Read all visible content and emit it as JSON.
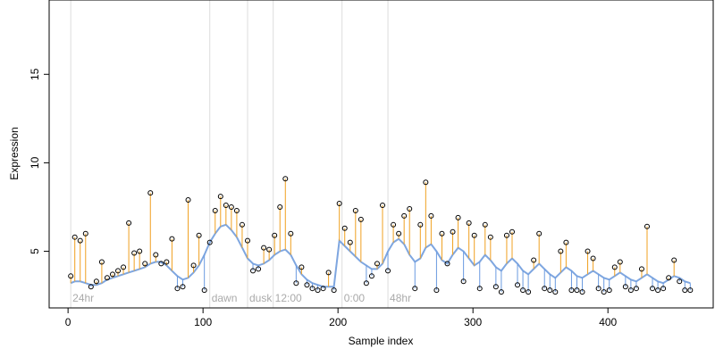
{
  "chart_data": {
    "type": "scatter",
    "title": "",
    "xlabel": "Sample index",
    "ylabel": "Expression",
    "xlim": [
      -14,
      478
    ],
    "ylim": [
      1.8,
      19.2
    ],
    "xticks": [
      0,
      100,
      200,
      300,
      400
    ],
    "yticks": [
      5,
      10,
      15
    ],
    "grid": false,
    "fitted_line_color": "#7ea6e0",
    "positive_residual_color": "#f0a020",
    "negative_residual_color": "#6a9ae0",
    "marker_edge_color": "#000000",
    "region_line_color": "#dddddd",
    "region_label_color": "#aaaaaa",
    "regions": [
      {
        "label": "24hr",
        "x": 2
      },
      {
        "label": "dawn",
        "x": 105
      },
      {
        "label": "dusk",
        "x": 133
      },
      {
        "label": "12:00",
        "x": 152
      },
      {
        "label": "0:00",
        "x": 203
      },
      {
        "label": "48hr",
        "x": 237
      }
    ],
    "series": [
      {
        "x": [
          2,
          5,
          9,
          13,
          17,
          21,
          25,
          29,
          33,
          37,
          41,
          45,
          49,
          53,
          57,
          61,
          65,
          69,
          73,
          77,
          81,
          85,
          89,
          93,
          97,
          101,
          105,
          109,
          113,
          117,
          121,
          125,
          129,
          133,
          137,
          141,
          145,
          149,
          153,
          157,
          161,
          165,
          169,
          173,
          177,
          181,
          185,
          189,
          193,
          197,
          201,
          205,
          209,
          213,
          217,
          221,
          225,
          229,
          233,
          237,
          241,
          245,
          249,
          253,
          257,
          261,
          265,
          269,
          273,
          277,
          281,
          285,
          289,
          293,
          297,
          301,
          305,
          309,
          313,
          317,
          321,
          325,
          329,
          333,
          337,
          341,
          345,
          349,
          353,
          357,
          361,
          365,
          369,
          373,
          377,
          381,
          385,
          389,
          393,
          397,
          401,
          405,
          409,
          413,
          417,
          421,
          425,
          429,
          433,
          437,
          441,
          445,
          449,
          453,
          457,
          461
        ],
        "fitted": [
          3.2,
          3.3,
          3.3,
          3.2,
          3.1,
          3.1,
          3.2,
          3.4,
          3.5,
          3.6,
          3.7,
          3.8,
          3.9,
          4.0,
          4.1,
          4.3,
          4.4,
          4.4,
          4.2,
          3.9,
          3.6,
          3.4,
          3.5,
          3.8,
          4.2,
          4.8,
          5.5,
          6.0,
          6.4,
          6.5,
          6.2,
          5.8,
          5.2,
          4.6,
          4.3,
          4.2,
          4.3,
          4.5,
          4.8,
          5.0,
          5.1,
          4.8,
          4.2,
          3.7,
          3.4,
          3.2,
          3.1,
          3.0,
          3.0,
          3.0,
          5.6,
          5.3,
          5.0,
          4.7,
          4.4,
          4.2,
          4.0,
          4.0,
          4.3,
          5.0,
          5.5,
          5.7,
          5.4,
          4.8,
          4.4,
          4.6,
          5.2,
          5.4,
          5.0,
          4.5,
          4.3,
          4.8,
          5.2,
          5.0,
          4.6,
          4.2,
          4.4,
          4.8,
          4.5,
          4.1,
          3.9,
          4.3,
          4.6,
          4.3,
          3.9,
          3.7,
          4.0,
          4.3,
          4.0,
          3.7,
          3.5,
          3.8,
          4.1,
          3.9,
          3.6,
          3.5,
          3.7,
          3.9,
          3.7,
          3.5,
          3.4,
          3.6,
          3.8,
          3.6,
          3.4,
          3.3,
          3.5,
          3.7,
          3.5,
          3.3,
          3.2,
          3.4,
          3.6,
          3.5,
          3.3,
          3.2
        ],
        "observed": [
          3.6,
          5.8,
          5.6,
          6.0,
          3.0,
          3.3,
          4.4,
          3.5,
          3.7,
          3.9,
          4.1,
          6.6,
          4.9,
          5.0,
          4.3,
          8.3,
          4.8,
          4.3,
          4.4,
          5.7,
          2.9,
          3.0,
          7.9,
          4.2,
          5.9,
          2.8,
          5.5,
          7.3,
          8.1,
          7.6,
          7.5,
          7.3,
          6.5,
          5.6,
          3.9,
          4.0,
          5.2,
          5.1,
          5.9,
          7.5,
          9.1,
          6.0,
          3.2,
          4.1,
          3.1,
          2.9,
          2.8,
          2.9,
          3.8,
          2.8,
          7.7,
          6.3,
          5.5,
          7.3,
          6.8,
          3.2,
          3.6,
          4.3,
          7.6,
          3.9,
          6.5,
          6.0,
          7.0,
          7.4,
          2.9,
          6.5,
          8.9,
          7.0,
          2.8,
          6.0,
          4.3,
          6.1,
          6.9,
          3.3,
          6.6,
          5.9,
          2.9,
          6.5,
          5.8,
          3.0,
          2.7,
          5.9,
          6.1,
          3.1,
          2.8,
          2.7,
          4.5,
          6.0,
          2.9,
          2.8,
          2.7,
          5.0,
          5.5,
          2.8,
          2.8,
          2.7,
          5.0,
          4.6,
          2.9,
          2.7,
          2.8,
          4.1,
          4.4,
          3.0,
          2.8,
          2.9,
          4.0,
          6.4,
          2.9,
          2.8,
          2.9,
          3.5,
          4.5,
          3.3,
          2.8,
          2.8
        ]
      }
    ]
  }
}
